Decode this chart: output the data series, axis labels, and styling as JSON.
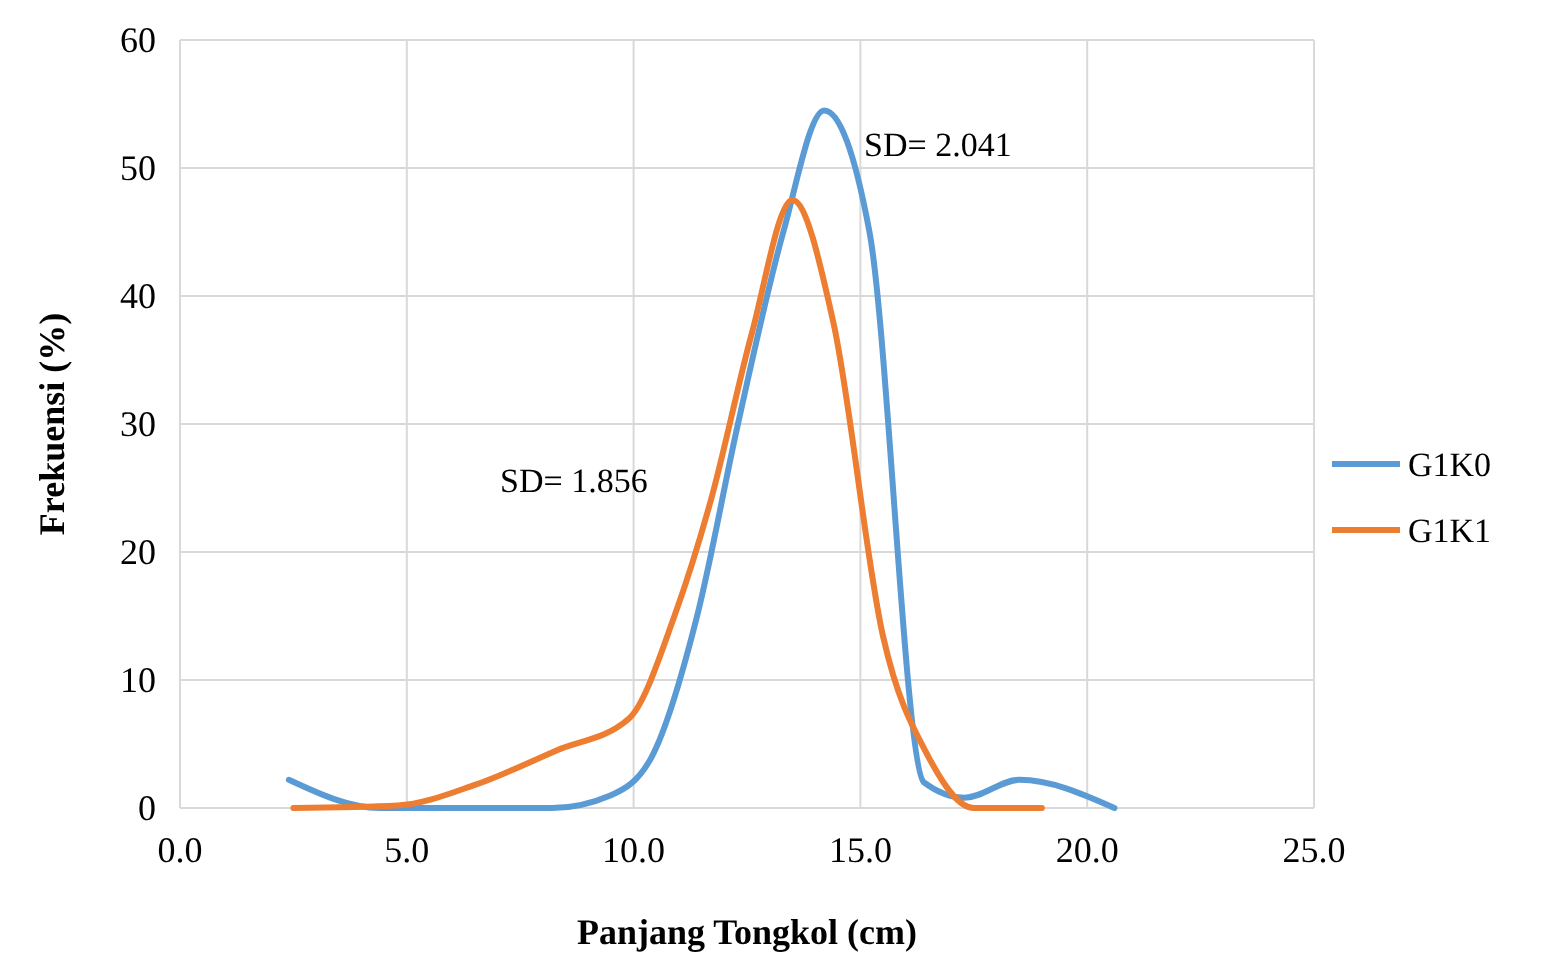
{
  "chart_data": {
    "type": "line",
    "xlabel": "Panjang Tongkol (cm)",
    "ylabel": "Frekuensi (%)",
    "xlim": [
      0,
      25
    ],
    "xticks": [
      {
        "value": 0,
        "label": "0.0"
      },
      {
        "value": 5,
        "label": "5.0"
      },
      {
        "value": 10,
        "label": "10.0"
      },
      {
        "value": 15,
        "label": "15.0"
      },
      {
        "value": 20,
        "label": "20.0"
      },
      {
        "value": 25,
        "label": "25.0"
      }
    ],
    "ylim": [
      0,
      60
    ],
    "yticks": [
      0,
      10,
      20,
      30,
      40,
      50,
      60
    ],
    "grid": true,
    "legend": "right",
    "marker": "none",
    "series": [
      {
        "name": "G1K0",
        "color": "#5b9bd5",
        "x": [
          2.4,
          4.4,
          6.4,
          8.2,
          9.5,
          10.4,
          11.4,
          12.3,
          13.3,
          14.2,
          15.2,
          16.4,
          17.3,
          18.5,
          20.6
        ],
        "values": [
          2.2,
          0,
          0,
          0,
          1,
          4,
          15,
          30,
          45,
          54.5,
          45,
          2,
          0.8,
          2.2,
          0
        ]
      },
      {
        "name": "G1K1",
        "color": "#ed7d31",
        "x": [
          2.5,
          4.8,
          6.5,
          8.3,
          9.9,
          10.9,
          11.7,
          12.6,
          13.5,
          14.4,
          15.5,
          16.5,
          17.5,
          19.0
        ],
        "values": [
          0,
          0.2,
          1.8,
          4.5,
          7,
          15,
          24,
          37,
          47.5,
          38,
          13.4,
          4,
          0,
          0
        ]
      }
    ],
    "annotations": [
      "SD= 2.041",
      "SD= 1.856"
    ]
  }
}
